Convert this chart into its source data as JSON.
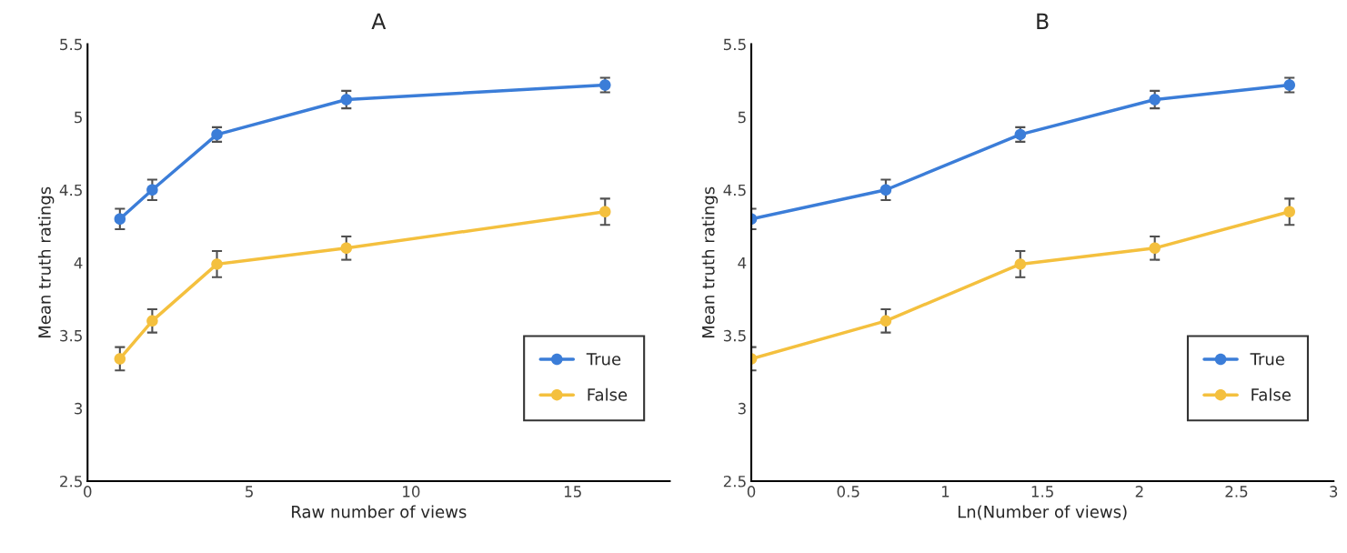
{
  "chart_data": [
    {
      "type": "line",
      "title": "A",
      "xlabel": "Raw number of views",
      "ylabel": "Mean truth ratings",
      "x": [
        1,
        2,
        4,
        8,
        16
      ],
      "series": [
        {
          "name": "True",
          "color": "#3b7dd8",
          "values": [
            4.3,
            4.5,
            4.88,
            5.12,
            5.22
          ],
          "errors": [
            0.07,
            0.07,
            0.05,
            0.06,
            0.05
          ]
        },
        {
          "name": "False",
          "color": "#f4c03e",
          "values": [
            3.34,
            3.6,
            3.99,
            4.1,
            4.35
          ],
          "errors": [
            0.08,
            0.08,
            0.09,
            0.08,
            0.09
          ]
        }
      ],
      "xlim": [
        0,
        18
      ],
      "xticks": [
        0,
        5,
        10,
        15
      ],
      "ylim": [
        2.5,
        5.5
      ],
      "yticks": [
        2.5,
        3,
        3.5,
        4,
        4.5,
        5,
        5.5
      ],
      "grid": false,
      "legend": "bottom right",
      "marker": "circle",
      "line_style": "solid"
    },
    {
      "type": "line",
      "title": "B",
      "xlabel": "Ln(Number of views)",
      "ylabel": "Mean truth ratings",
      "x": [
        0,
        0.693,
        1.386,
        2.079,
        2.773
      ],
      "series": [
        {
          "name": "True",
          "color": "#3b7dd8",
          "values": [
            4.3,
            4.5,
            4.88,
            5.12,
            5.22
          ],
          "errors": [
            0.07,
            0.07,
            0.05,
            0.06,
            0.05
          ]
        },
        {
          "name": "False",
          "color": "#f4c03e",
          "values": [
            3.34,
            3.6,
            3.99,
            4.1,
            4.35
          ],
          "errors": [
            0.08,
            0.08,
            0.09,
            0.08,
            0.09
          ]
        }
      ],
      "xlim": [
        0,
        3
      ],
      "xticks": [
        0,
        0.5,
        1,
        1.5,
        2,
        2.5,
        3
      ],
      "ylim": [
        2.5,
        5.5
      ],
      "yticks": [
        2.5,
        3,
        3.5,
        4,
        4.5,
        5,
        5.5
      ],
      "grid": false,
      "legend": "bottom right",
      "marker": "circle",
      "line_style": "solid"
    }
  ]
}
